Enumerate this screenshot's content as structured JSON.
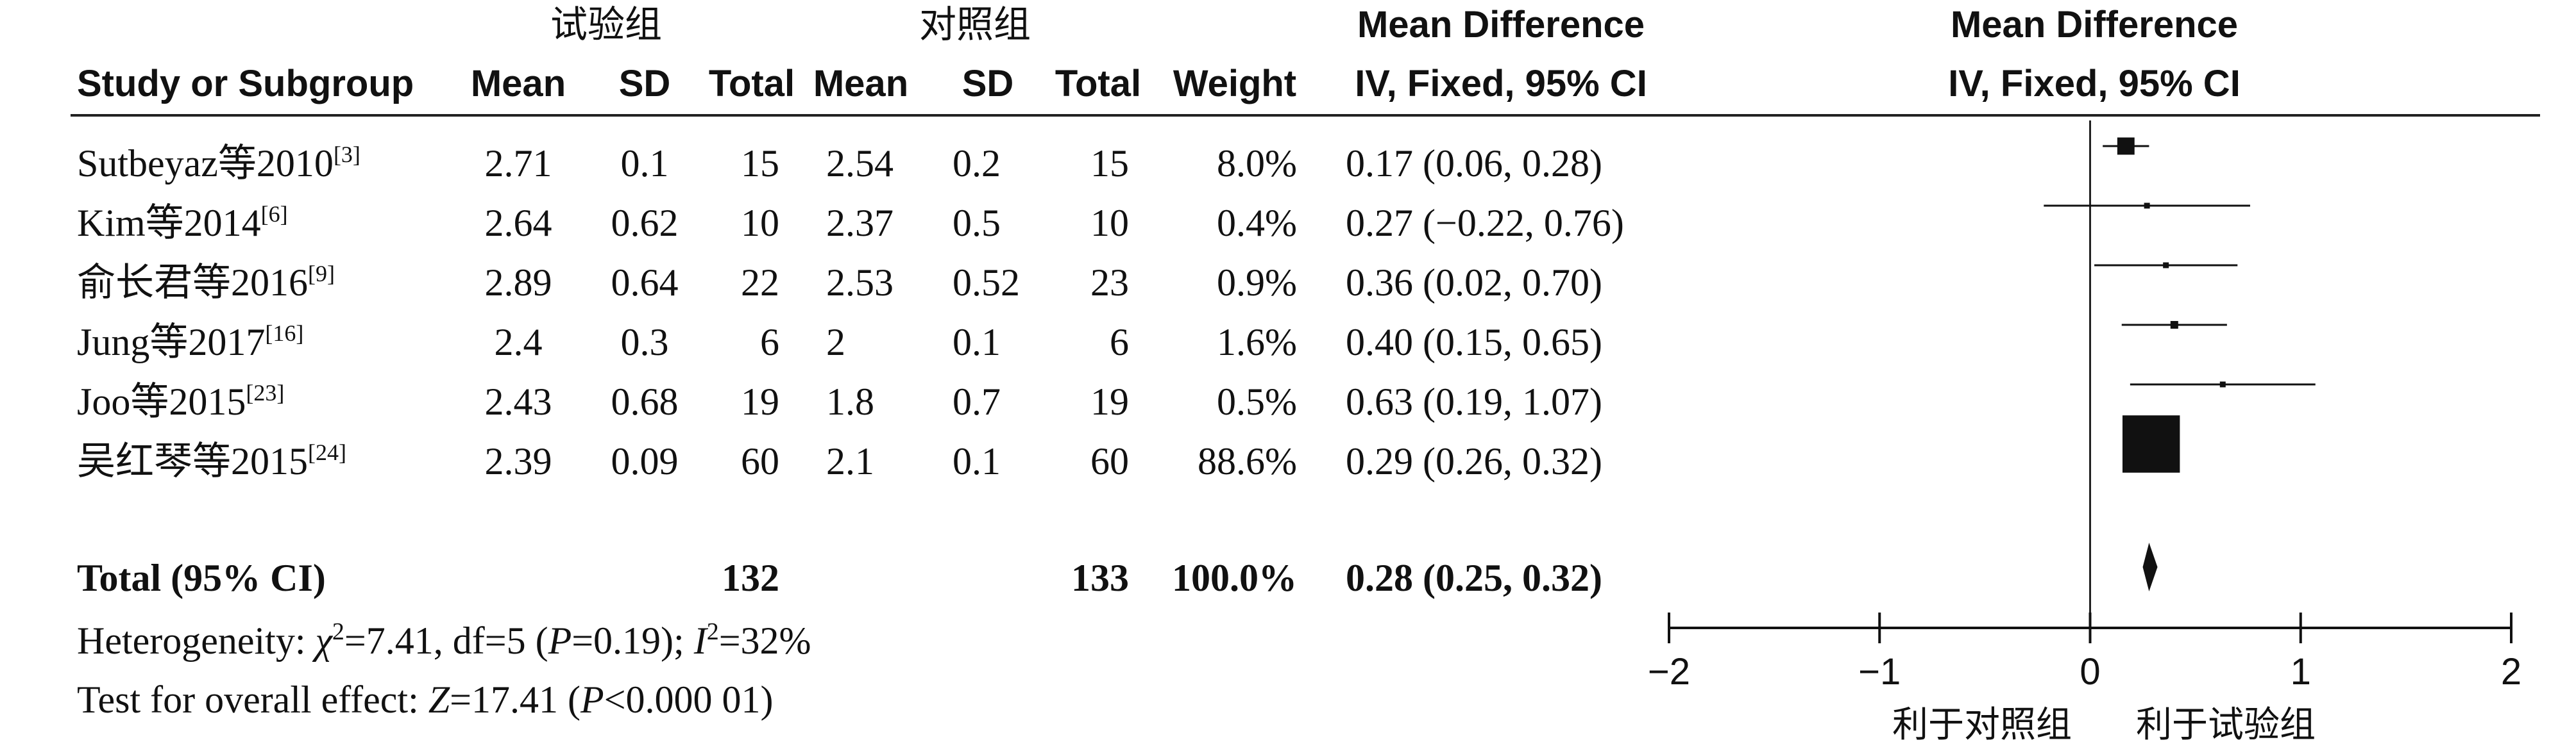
{
  "header": {
    "group_exp": "试验组",
    "group_ctl": "对照组",
    "study_col": "Study or Subgroup",
    "mean": "Mean",
    "sd": "SD",
    "total": "Total",
    "weight": "Weight",
    "md_title": "Mean Difference",
    "md_method": "IV, Fixed, 95% CI",
    "plot_title": "Mean Difference",
    "plot_method": "IV, Fixed, 95% CI"
  },
  "studies": [
    {
      "name": "Sutbeyaz等2010",
      "ref": "[3]",
      "exp_mean": "2.71",
      "exp_sd": "0.1",
      "exp_total": "15",
      "ctl_mean": "2.54",
      "ctl_sd": "0.2",
      "ctl_total": "15",
      "weight": "8.0%",
      "ci_text": "0.17 (0.06, 0.28)"
    },
    {
      "name": "Kim等2014",
      "ref": "[6]",
      "exp_mean": "2.64",
      "exp_sd": "0.62",
      "exp_total": "10",
      "ctl_mean": "2.37",
      "ctl_sd": "0.5",
      "ctl_total": "10",
      "weight": "0.4%",
      "ci_text": "0.27 (−0.22, 0.76)"
    },
    {
      "name": "俞长君等2016",
      "ref": "[9]",
      "exp_mean": "2.89",
      "exp_sd": "0.64",
      "exp_total": "22",
      "ctl_mean": "2.53",
      "ctl_sd": "0.52",
      "ctl_total": "23",
      "weight": "0.9%",
      "ci_text": "0.36 (0.02, 0.70)"
    },
    {
      "name": "Jung等2017",
      "ref": "[16]",
      "exp_mean": "2.4",
      "exp_sd": "0.3",
      "exp_total": "6",
      "ctl_mean": "2",
      "ctl_sd": "0.1",
      "ctl_total": "6",
      "weight": "1.6%",
      "ci_text": "0.40 (0.15, 0.65)"
    },
    {
      "name": "Joo等2015",
      "ref": "[23]",
      "exp_mean": "2.43",
      "exp_sd": "0.68",
      "exp_total": "19",
      "ctl_mean": "1.8",
      "ctl_sd": "0.7",
      "ctl_total": "19",
      "weight": "0.5%",
      "ci_text": "0.63 (0.19, 1.07)"
    },
    {
      "name": "吴红琴等2015",
      "ref": "[24]",
      "exp_mean": "2.39",
      "exp_sd": "0.09",
      "exp_total": "60",
      "ctl_mean": "2.1",
      "ctl_sd": "0.1",
      "ctl_total": "60",
      "weight": "88.6%",
      "ci_text": "0.29 (0.26, 0.32)"
    }
  ],
  "total_row": {
    "label": "Total (95% CI)",
    "exp_total": "132",
    "ctl_total": "133",
    "weight": "100.0%",
    "ci_text": "0.28 (0.25, 0.32)"
  },
  "heterogeneity": {
    "prefix": "Heterogeneity: ",
    "chi": "χ",
    "chi_sup": "2",
    "chi_val": "=7.41, df=5 (",
    "p": "P",
    "p_val": "=0.19); ",
    "i": "I",
    "i_sup": "2",
    "i_val": "=32%"
  },
  "overall_effect": {
    "prefix": "Test for overall effect: ",
    "z": "Z",
    "z_val": "=17.41 (",
    "p": "P",
    "p_val": "<0.000 01)"
  },
  "favours": {
    "left": "利于对照组",
    "right": "利于试验组"
  },
  "chart_data": {
    "type": "forest",
    "xlim": [
      -2,
      2
    ],
    "ticks": [
      -2,
      -1,
      0,
      1,
      2
    ],
    "tick_labels": [
      "−2",
      "−1",
      "0",
      "1",
      "2"
    ],
    "series": [
      {
        "md": 0.17,
        "lo": 0.06,
        "hi": 0.28,
        "weight": 8.0
      },
      {
        "md": 0.27,
        "lo": -0.22,
        "hi": 0.76,
        "weight": 0.4
      },
      {
        "md": 0.36,
        "lo": 0.02,
        "hi": 0.7,
        "weight": 0.9
      },
      {
        "md": 0.4,
        "lo": 0.15,
        "hi": 0.65,
        "weight": 1.6
      },
      {
        "md": 0.63,
        "lo": 0.19,
        "hi": 1.07,
        "weight": 0.5
      },
      {
        "md": 0.29,
        "lo": 0.26,
        "hi": 0.32,
        "weight": 88.6
      }
    ],
    "pooled": {
      "md": 0.28,
      "lo": 0.25,
      "hi": 0.32
    }
  }
}
